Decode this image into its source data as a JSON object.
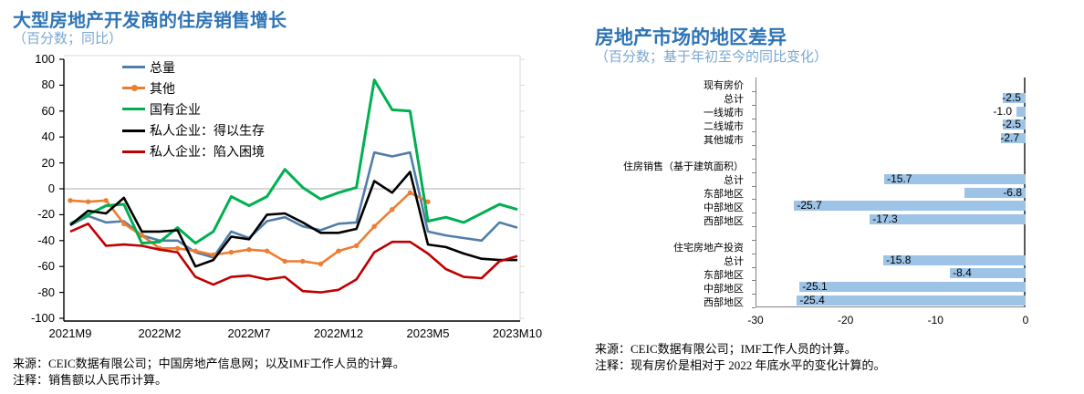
{
  "left_figure": {
    "title": "大型房地产开发商的住房销售增长",
    "subtitle": "（百分数；同比）",
    "source_line1": "来源：CEIC数据有限公司；中国房地产信息网；以及IMF工作人员的计算。",
    "source_line2": "注释：销售额以人民币计算。"
  },
  "right_figure": {
    "title": "房地产市场的地区差异",
    "subtitle": "（百分数；基于年初至今的同比变化）",
    "source_line1": "来源：CEIC数据有限公司；IMF工作人员的计算。",
    "source_line2": "注释：现有房价是相对于 2022 年底水平的变化计算的。"
  },
  "colors": {
    "title_blue": "#2E74B5",
    "subtitle_blue": "#7AA7D1",
    "axis_dark": "#404040",
    "axis_gray": "#808080",
    "grid_gray": "#C9C9C9",
    "border_gray": "#D9D9D9",
    "bar_fill": "#9DC3E6"
  },
  "chart_data": [
    {
      "type": "line",
      "title": "大型房地产开发商的住房销售增长",
      "ylabel": "",
      "ylim": [
        -100,
        100
      ],
      "y_ticks": [
        100,
        80,
        60,
        40,
        20,
        0,
        -20,
        -40,
        -60,
        -80,
        -100
      ],
      "grid": "zero-line-only",
      "legend_position": "inside-top-left",
      "x": [
        "2021M9",
        "2021M10",
        "2021M11",
        "2021M12",
        "2022M1",
        "2022M2",
        "2022M3",
        "2022M4",
        "2022M5",
        "2022M6",
        "2022M7",
        "2022M8",
        "2022M9",
        "2022M10",
        "2022M11",
        "2022M12",
        "2023M1",
        "2023M2",
        "2023M3",
        "2023M4",
        "2023M5",
        "2023M6",
        "2023M7",
        "2023M8",
        "2023M9",
        "2023M10"
      ],
      "x_tick_labels": [
        "2021M9",
        "2022M2",
        "2022M7",
        "2022M12",
        "2023M5",
        "2023M10"
      ],
      "series": [
        {
          "name": "总量",
          "color": "#517EA9",
          "marker": false,
          "values": [
            -28,
            -21,
            -26,
            -25,
            -36,
            -40,
            -40,
            -49,
            -53,
            -33,
            -38,
            -25,
            -22,
            -29,
            -32,
            -27,
            -26,
            28,
            25,
            28,
            -33,
            -36,
            -38,
            -40,
            -26,
            -30
          ]
        },
        {
          "name": "其他",
          "color": "#ED7D31",
          "marker": true,
          "values": [
            -9,
            -10,
            -9,
            -27,
            -36,
            -46,
            -46,
            -48,
            -51,
            -49,
            -47,
            -48,
            -56,
            -56,
            -58,
            -48,
            -44,
            -29,
            -16,
            -3,
            -10,
            null,
            null,
            null,
            null,
            null
          ]
        },
        {
          "name": "国有企业",
          "color": "#00B050",
          "marker": false,
          "values": [
            -27,
            -20,
            -13,
            -12,
            -42,
            -41,
            -30,
            -42,
            -33,
            -6,
            -13,
            -6,
            15,
            1,
            -8,
            -3,
            1,
            84,
            61,
            60,
            -25,
            -22,
            -26,
            -19,
            -12,
            -16
          ]
        },
        {
          "name": "私人企业：得以生存",
          "color": "#000000",
          "marker": false,
          "values": [
            -28,
            -17,
            -19,
            -7,
            -33,
            -33,
            -32,
            -60,
            -55,
            -37,
            -39,
            -20,
            -19,
            -26,
            -34,
            -34,
            -31,
            6,
            -3,
            13,
            -43,
            -45,
            -50,
            -54,
            -55,
            -55
          ]
        },
        {
          "name": "私人企业：陷入困境",
          "color": "#C00000",
          "marker": false,
          "values": [
            -33,
            -27,
            -44,
            -43,
            -44,
            -47,
            -49,
            -68,
            -74,
            -68,
            -67,
            -70,
            -68,
            -79,
            -80,
            -78,
            -70,
            -49,
            -41,
            -41,
            -50,
            -62,
            -68,
            -69,
            -56,
            -52
          ]
        }
      ]
    },
    {
      "type": "bar",
      "orientation": "horizontal",
      "title": "房地产市场的地区差异",
      "xlim": [
        -30,
        0
      ],
      "x_ticks": [
        -30,
        -20,
        -10,
        0
      ],
      "bar_color": "#9DC3E6",
      "rows": [
        {
          "label": "现有房价",
          "header": true
        },
        {
          "label": "总计",
          "value": -2.5,
          "label_pos": "tip"
        },
        {
          "label": "一线城市",
          "value": -1.0,
          "label_pos": "out"
        },
        {
          "label": "二线城市",
          "value": -2.5,
          "label_pos": "tip"
        },
        {
          "label": "其他城市",
          "value": -2.7,
          "label_pos": "tip"
        },
        {
          "spacer": true
        },
        {
          "label": "住房销售（基于建筑面积）",
          "header": true
        },
        {
          "label": "总计",
          "value": -15.7,
          "label_pos": "in-start"
        },
        {
          "label": "东部地区",
          "value": -6.8,
          "label_pos": "in-base"
        },
        {
          "label": "中部地区",
          "value": -25.7,
          "label_pos": "in-start"
        },
        {
          "label": "西部地区",
          "value": -17.3,
          "label_pos": "in-start"
        },
        {
          "spacer": true
        },
        {
          "label": "住宅房地产投资",
          "header": true
        },
        {
          "label": "总计",
          "value": -15.8,
          "label_pos": "in-start"
        },
        {
          "label": "东部地区",
          "value": -8.4,
          "label_pos": "in-start"
        },
        {
          "label": "中部地区",
          "value": -25.1,
          "label_pos": "in-start"
        },
        {
          "label": "西部地区",
          "value": -25.4,
          "label_pos": "in-start"
        }
      ]
    }
  ]
}
